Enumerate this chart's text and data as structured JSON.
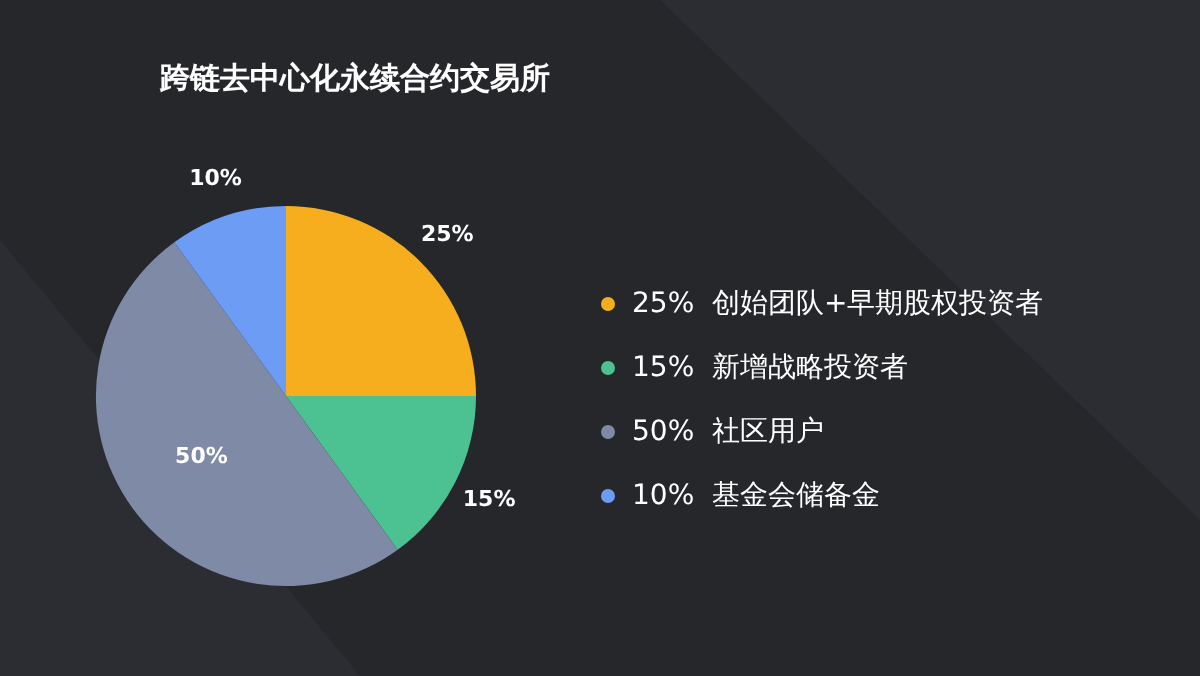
{
  "chart_data": {
    "type": "pie",
    "title": "跨链去中心化永续合约交易所",
    "categories": [
      "25%  创始团队+早期股权投资者",
      "15%  新增战略投资者",
      "50%  社区用户",
      "10%  基金会储备金"
    ],
    "values": [
      25,
      15,
      50,
      10
    ],
    "colors": [
      "#f7ae1e",
      "#4cc293",
      "#7e8aa6",
      "#6d9cf5"
    ],
    "value_labels": [
      "25%",
      "15%",
      "50%",
      "10%"
    ],
    "legend": "right"
  }
}
